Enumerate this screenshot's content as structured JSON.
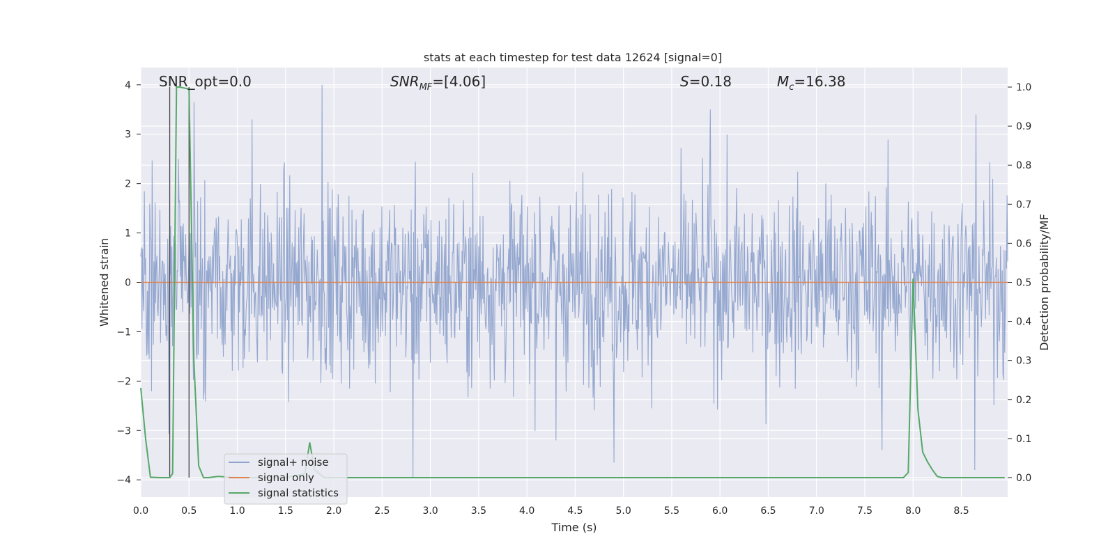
{
  "chart_data": {
    "type": "line",
    "title": "stats at each timestep for test data 12624 [signal=0]",
    "xlabel": "Time (s)",
    "ylabel": "Whitened strain",
    "y2label": "Detection probability/MF",
    "xlim": [
      0.0,
      8.98
    ],
    "ylim": [
      -4.35,
      4.35
    ],
    "y2lim": [
      -0.05,
      1.05
    ],
    "x_ticks": [
      "0.0",
      "0.5",
      "1.0",
      "1.5",
      "2.0",
      "2.5",
      "3.0",
      "3.5",
      "4.0",
      "4.5",
      "5.0",
      "5.5",
      "6.0",
      "6.5",
      "7.0",
      "7.5",
      "8.0",
      "8.5"
    ],
    "y_ticks": [
      "−4",
      "−3",
      "−2",
      "−1",
      "0",
      "1",
      "2",
      "3",
      "4"
    ],
    "y2_ticks": [
      "0.0",
      "0.1",
      "0.2",
      "0.3",
      "0.4",
      "0.5",
      "0.6",
      "0.7",
      "0.8",
      "0.9",
      "1.0"
    ],
    "grid": true,
    "legend_placement": "lower-left",
    "annotations": {
      "snr_opt": "SNR_opt=0.0",
      "snr_mf_sym": "SNR",
      "snr_mf_sub": "MF",
      "snr_mf_val": "=[4.06]",
      "s_sym": "S",
      "s_val": "=0.18",
      "mc_sym": "M",
      "mc_sub": "c",
      "mc_val": "=16.38"
    },
    "vertical_lines_x": [
      0.3,
      0.5
    ],
    "series": [
      {
        "name": "signal+ noise",
        "color": "#8fa3cc",
        "axis": "left",
        "description": "whitened strain noise, approx. unit variance, peaks near ±4",
        "peak_points": [
          [
            0.39,
            2.5
          ],
          [
            0.55,
            3.65
          ],
          [
            1.15,
            3.3
          ],
          [
            1.88,
            4.0
          ],
          [
            2.82,
            -3.95
          ],
          [
            4.9,
            -3.65
          ],
          [
            5.9,
            3.5
          ],
          [
            8.65,
            3.4
          ],
          [
            8.64,
            -3.8
          ],
          [
            7.68,
            -3.4
          ],
          [
            4.3,
            -3.2
          ]
        ]
      },
      {
        "name": "signal only",
        "color": "#dd8452",
        "axis": "left",
        "x": [
          0.0,
          8.98
        ],
        "y": [
          0.0,
          0.0
        ]
      },
      {
        "name": "signal statistics",
        "color": "#55a868",
        "axis": "right",
        "x": [
          0.0,
          0.05,
          0.1,
          0.2,
          0.3,
          0.33,
          0.37,
          0.4,
          0.5,
          0.55,
          0.6,
          0.65,
          0.7,
          0.8,
          1.0,
          1.5,
          1.7,
          1.75,
          1.8,
          1.9,
          2.0,
          2.5,
          3.0,
          4.0,
          5.0,
          6.0,
          7.0,
          7.5,
          7.9,
          7.95,
          8.0,
          8.05,
          8.1,
          8.15,
          8.2,
          8.25,
          8.3,
          8.5,
          8.95
        ],
        "y": [
          0.23,
          0.1,
          0.001,
          0.0,
          0.0,
          0.01,
          1.0,
          1.0,
          0.995,
          0.3,
          0.03,
          0.0,
          0.0,
          0.003,
          0.0,
          0.0,
          0.01,
          0.09,
          0.02,
          0.0,
          0.0,
          0.0,
          0.0,
          0.0,
          0.0,
          0.0,
          0.0,
          0.0,
          0.0,
          0.013,
          0.51,
          0.175,
          0.065,
          0.04,
          0.02,
          0.003,
          0.0,
          0.0,
          0.0
        ]
      }
    ]
  }
}
